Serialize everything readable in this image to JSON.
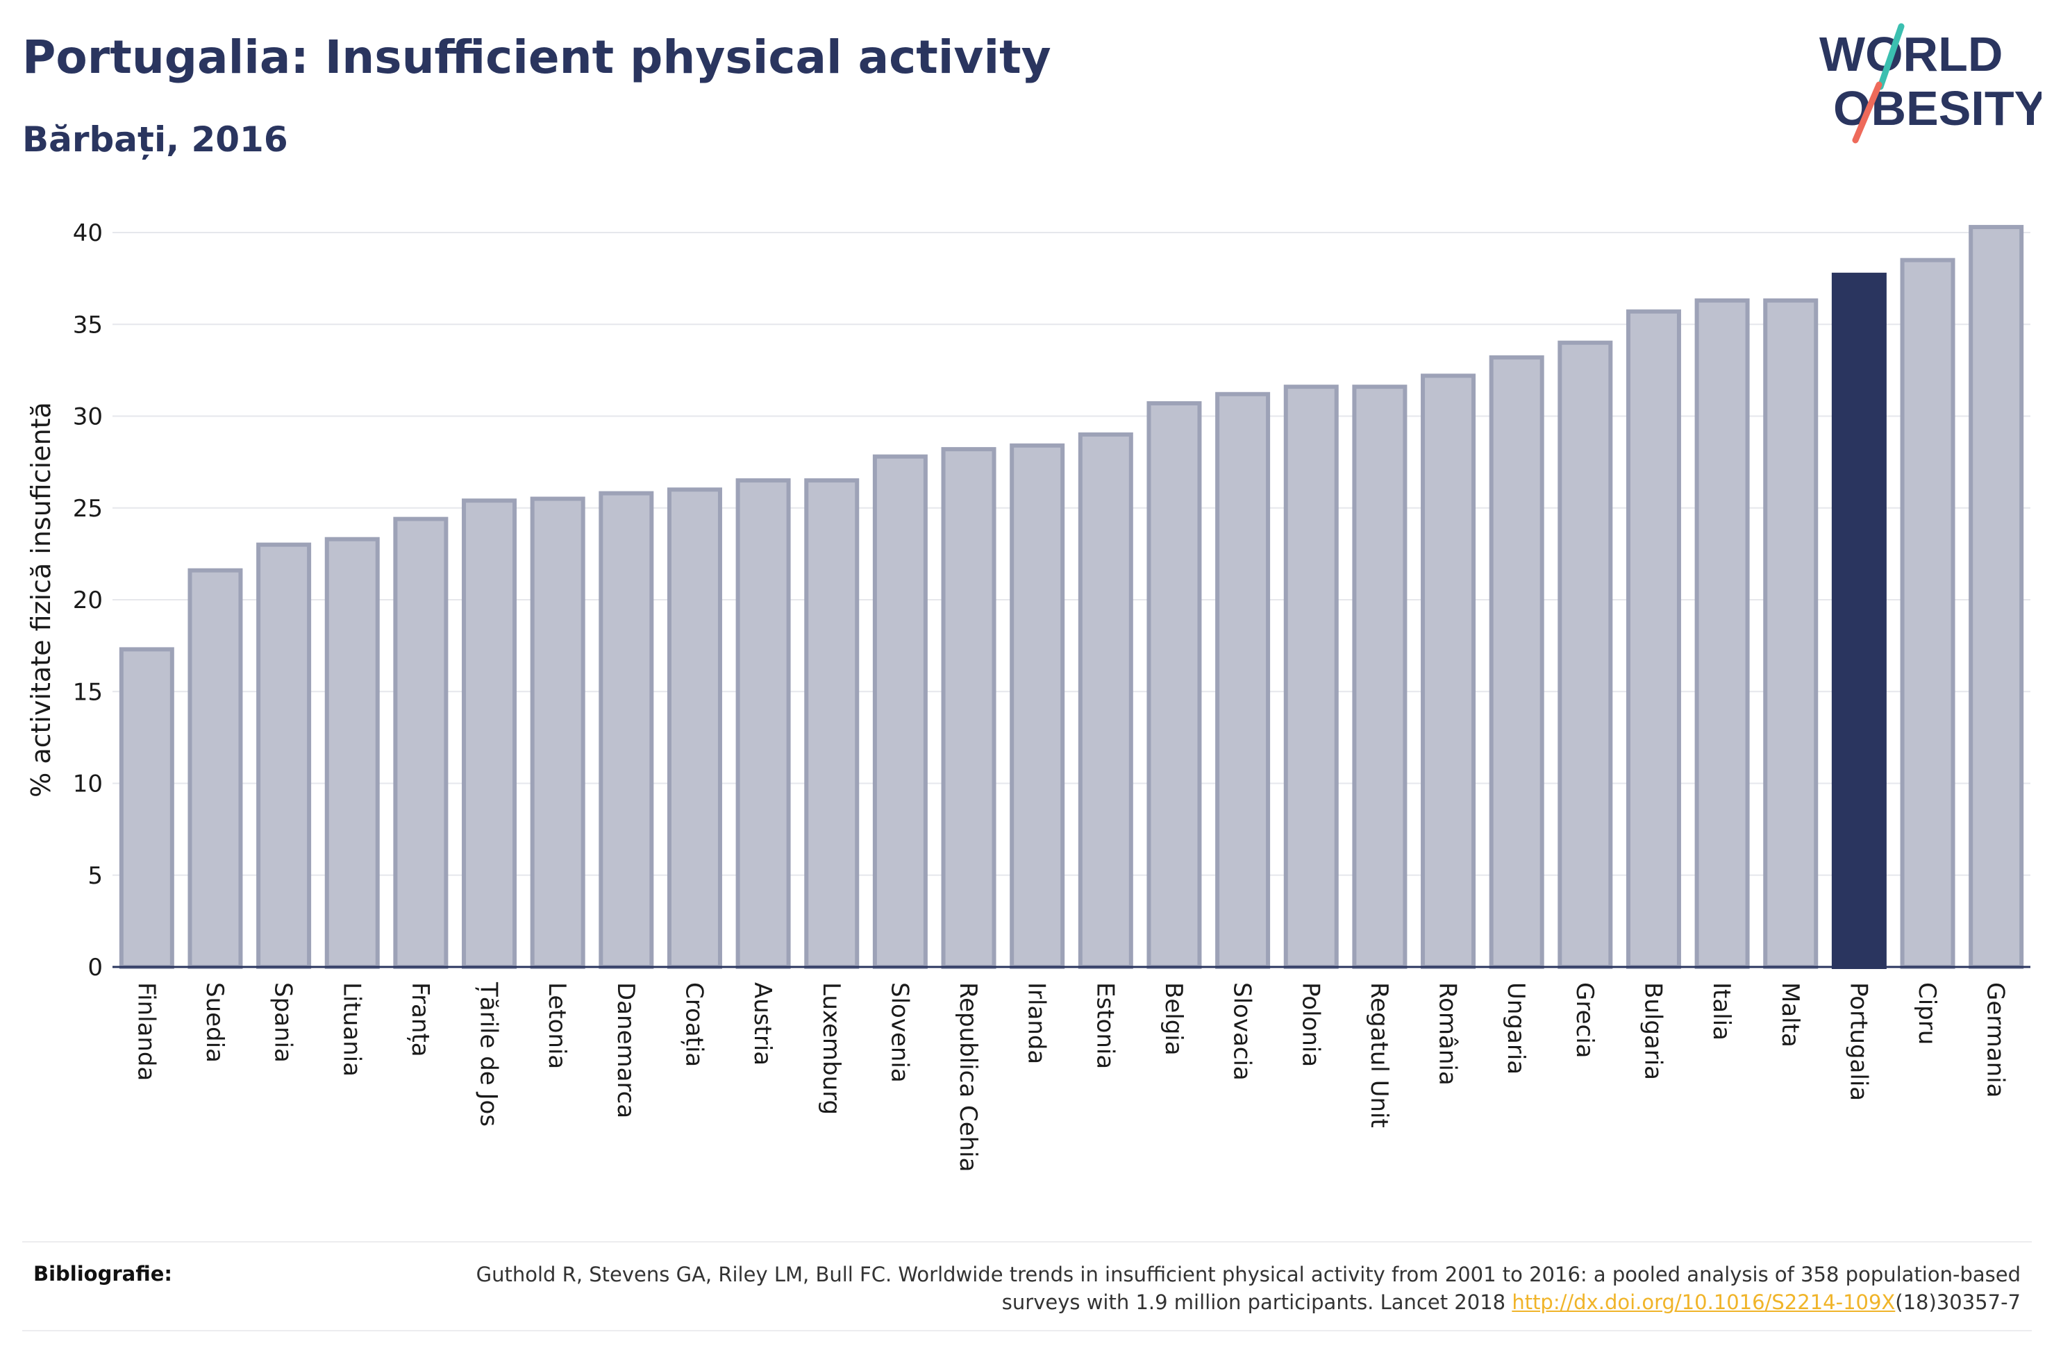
{
  "header": {
    "title": "Portugalia: Insufficient physical activity",
    "subtitle": "Bărbați, 2016"
  },
  "logo": {
    "line1": "WORLD",
    "line2": "OBESITY",
    "colors": {
      "text": "#2a355f",
      "slash_top": "#3bbfb0",
      "slash_bottom": "#ee6a5a"
    }
  },
  "colors": {
    "bar": "#bec1cf",
    "bar_border": "#9da2b7",
    "highlight": "#2a355f",
    "grid": "#e6e7ec",
    "axis": "#2a355f"
  },
  "chart_data": {
    "type": "bar",
    "ylabel": "% activitate fizică insuficientă",
    "xlabel": "",
    "ylim": [
      0,
      40
    ],
    "yticks": [
      0,
      5,
      10,
      15,
      20,
      25,
      30,
      35,
      40
    ],
    "grid": true,
    "highlight": "Portugalia",
    "categories": [
      "Finlanda",
      "Suedia",
      "Spania",
      "Lituania",
      "Franța",
      "Țările de Jos",
      "Letonia",
      "Danemarca",
      "Croația",
      "Austria",
      "Luxemburg",
      "Slovenia",
      "Republica Cehia",
      "Irlanda",
      "Estonia",
      "Belgia",
      "Slovacia",
      "Polonia",
      "Regatul Unit",
      "România",
      "Ungaria",
      "Grecia",
      "Bulgaria",
      "Italia",
      "Malta",
      "Portugalia",
      "Cipru",
      "Germania"
    ],
    "values": [
      17.3,
      21.6,
      23.0,
      23.3,
      24.4,
      25.4,
      25.5,
      25.8,
      26.0,
      26.5,
      26.5,
      27.8,
      28.2,
      28.4,
      29.0,
      30.7,
      31.2,
      31.6,
      31.6,
      32.2,
      33.2,
      34.0,
      35.7,
      36.3,
      36.3,
      37.7,
      38.5,
      40.3
    ]
  },
  "references": {
    "label": "Bibliografie:",
    "text_before_link": "Guthold R, Stevens GA, Riley LM, Bull FC. Worldwide trends in insufficient physical activity from 2001 to 2016: a pooled analysis of 358 population-based surveys with 1.9 million participants. Lancet 2018 ",
    "link": "http://dx.doi.org/10.1016/S2214-109X",
    "text_after_link": "(18)30357-7"
  }
}
